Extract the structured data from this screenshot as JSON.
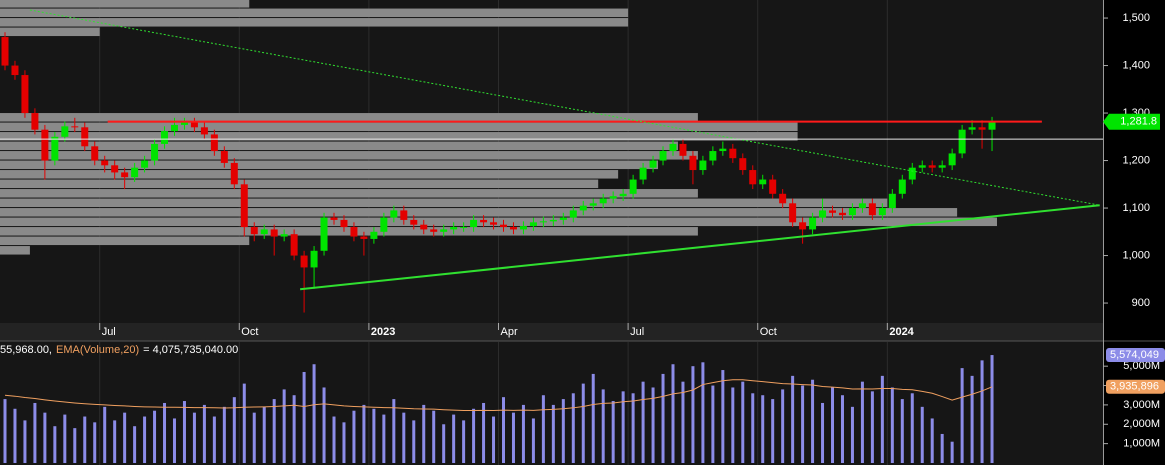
{
  "chart_data": [
    {
      "type": "candlestick",
      "categories": [
        null,
        null,
        null,
        null,
        null,
        null,
        null,
        null,
        null,
        null,
        "Jul",
        null,
        null,
        null,
        null,
        null,
        null,
        null,
        null,
        null,
        null,
        null,
        null,
        null,
        "Oct",
        null,
        null,
        null,
        null,
        null,
        null,
        null,
        null,
        null,
        null,
        null,
        null,
        "2023",
        null,
        null,
        null,
        null,
        null,
        null,
        null,
        null,
        null,
        null,
        null,
        null,
        "Apr",
        null,
        null,
        null,
        null,
        null,
        null,
        null,
        null,
        null,
        null,
        null,
        null,
        "Jul",
        null,
        null,
        null,
        null,
        null,
        null,
        null,
        null,
        null,
        null,
        null,
        null,
        "Oct",
        null,
        null,
        null,
        null,
        null,
        null,
        null,
        null,
        null,
        null,
        null,
        null,
        "2024",
        null,
        null,
        null,
        null,
        null,
        null,
        null,
        null,
        null,
        null
      ],
      "open": [
        1460,
        1400,
        1380,
        1300,
        1265,
        1200,
        1250,
        1272,
        1270,
        1230,
        1200,
        1190,
        1175,
        1165,
        1185,
        1200,
        1235,
        1262,
        1275,
        1280,
        1270,
        1255,
        1220,
        1195,
        1150,
        1060,
        1045,
        1055,
        1040,
        1045,
        1000,
        975,
        1010,
        1080,
        1075,
        1060,
        1040,
        1035,
        1050,
        1080,
        1095,
        1075,
        1065,
        1055,
        1050,
        1055,
        1060,
        1060,
        1075,
        1070,
        1065,
        1060,
        1055,
        1062,
        1070,
        1072,
        1075,
        1080,
        1095,
        1105,
        1110,
        1120,
        1125,
        1130,
        1160,
        1185,
        1200,
        1220,
        1235,
        1210,
        1180,
        1200,
        1220,
        1225,
        1205,
        1180,
        1150,
        1160,
        1130,
        1110,
        1070,
        1055,
        1080,
        1095,
        1090,
        1085,
        1100,
        1110,
        1085,
        1100,
        1130,
        1160,
        1185,
        1190,
        1185,
        1190,
        1215,
        1265,
        1270,
        1265
      ],
      "high": [
        1470,
        1410,
        1390,
        1310,
        1275,
        1260,
        1282,
        1290,
        1280,
        1240,
        1210,
        1200,
        1185,
        1195,
        1210,
        1245,
        1272,
        1290,
        1290,
        1290,
        1280,
        1265,
        1230,
        1205,
        1160,
        1070,
        1065,
        1065,
        1055,
        1055,
        1010,
        1020,
        1090,
        1090,
        1085,
        1070,
        1050,
        1060,
        1090,
        1105,
        1105,
        1085,
        1075,
        1065,
        1065,
        1070,
        1070,
        1085,
        1085,
        1080,
        1075,
        1070,
        1072,
        1080,
        1082,
        1085,
        1090,
        1105,
        1115,
        1120,
        1130,
        1135,
        1140,
        1170,
        1195,
        1210,
        1230,
        1245,
        1245,
        1220,
        1210,
        1230,
        1240,
        1235,
        1215,
        1190,
        1170,
        1170,
        1140,
        1120,
        1080,
        1090,
        1120,
        1105,
        1100,
        1110,
        1120,
        1120,
        1110,
        1140,
        1170,
        1195,
        1200,
        1200,
        1200,
        1225,
        1275,
        1285,
        1285,
        1292
      ],
      "low": [
        1390,
        1370,
        1290,
        1255,
        1160,
        1190,
        1240,
        1260,
        1220,
        1190,
        1175,
        1160,
        1140,
        1155,
        1175,
        1190,
        1225,
        1252,
        1265,
        1260,
        1245,
        1210,
        1185,
        1140,
        1040,
        1030,
        1035,
        1000,
        1030,
        990,
        880,
        930,
        1000,
        1065,
        1050,
        1030,
        1000,
        1025,
        1040,
        1070,
        1065,
        1055,
        1045,
        1040,
        1040,
        1045,
        1050,
        1050,
        1060,
        1055,
        1050,
        1045,
        1045,
        1052,
        1060,
        1062,
        1065,
        1070,
        1085,
        1095,
        1100,
        1110,
        1115,
        1120,
        1150,
        1175,
        1190,
        1210,
        1200,
        1150,
        1170,
        1190,
        1210,
        1195,
        1170,
        1140,
        1140,
        1120,
        1100,
        1060,
        1025,
        1045,
        1070,
        1080,
        1075,
        1075,
        1090,
        1075,
        1075,
        1090,
        1120,
        1150,
        1175,
        1175,
        1175,
        1180,
        1205,
        1255,
        1225,
        1220
      ],
      "close": [
        1400,
        1380,
        1300,
        1265,
        1200,
        1250,
        1272,
        1270,
        1230,
        1200,
        1190,
        1175,
        1165,
        1185,
        1200,
        1235,
        1262,
        1275,
        1280,
        1270,
        1255,
        1220,
        1195,
        1150,
        1060,
        1045,
        1055,
        1040,
        1045,
        1000,
        975,
        1010,
        1080,
        1075,
        1060,
        1040,
        1035,
        1050,
        1080,
        1095,
        1075,
        1065,
        1055,
        1050,
        1055,
        1060,
        1060,
        1075,
        1070,
        1065,
        1060,
        1055,
        1062,
        1070,
        1072,
        1075,
        1080,
        1095,
        1105,
        1110,
        1120,
        1125,
        1130,
        1160,
        1185,
        1200,
        1220,
        1235,
        1210,
        1180,
        1200,
        1220,
        1225,
        1205,
        1180,
        1150,
        1160,
        1130,
        1110,
        1070,
        1055,
        1080,
        1095,
        1090,
        1085,
        1100,
        1110,
        1085,
        1100,
        1130,
        1160,
        1185,
        1190,
        1185,
        1190,
        1215,
        1265,
        1270,
        1265,
        1281.8
      ],
      "up_color": "#00e400",
      "down_color": "#e40000",
      "last_close_label": "1,281.8",
      "ylim": [
        858,
        1538
      ],
      "yticks": [
        900,
        {
          "value": 1000,
          "label": "1,000"
        },
        {
          "value": 1100,
          "label": "1,100"
        },
        {
          "value": 1200,
          "label": "1,200"
        },
        {
          "value": 1300,
          "label": "1,300"
        },
        {
          "value": 1400,
          "label": "1,400"
        },
        {
          "value": 1500,
          "label": "1,500"
        }
      ],
      "grid": true,
      "volume_profile": {
        "color": "#8a8a8a",
        "bins": [
          1000,
          1020,
          1040,
          1060,
          1080,
          1100,
          1120,
          1140,
          1160,
          1180,
          1200,
          1220,
          1240,
          1260,
          1280,
          1300,
          1320,
          1340,
          1360,
          1380,
          1400,
          1420,
          1440,
          1460,
          1480,
          1500,
          1520,
          1540
        ],
        "values": [
          3,
          25,
          70,
          100,
          96,
          89,
          70,
          60,
          62,
          66,
          70,
          68,
          80,
          80,
          70,
          0,
          0,
          0,
          0,
          0,
          0,
          0,
          0,
          10,
          63,
          63,
          25
        ]
      },
      "lines": [
        {
          "color": "#ff1a1a",
          "dashed": false,
          "x": [
            10.3,
            104
          ],
          "y": [
            1282,
            1282
          ]
        },
        {
          "color": "#30e030",
          "dashed": false,
          "x": [
            29.6,
            109.8
          ],
          "y": [
            929,
            1106
          ]
        },
        {
          "color": "#30e030",
          "dashed": true,
          "x": [
            2.5,
            109.8
          ],
          "y": [
            1517,
            1106
          ]
        }
      ],
      "price_line": 1245
    },
    {
      "type": "bar",
      "header_prefix": "55,968.00,",
      "header_suffix": "= 4,075,735,040.00",
      "series": [
        {
          "color": "#8c8ce8",
          "last_label": "5,574,049",
          "values": [
            3300,
            2800,
            2200,
            3100,
            2600,
            1900,
            2500,
            1800,
            2400,
            2100,
            2900,
            2200,
            2600,
            1900,
            2400,
            2700,
            3100,
            2300,
            3200,
            2600,
            3000,
            2400,
            2900,
            3400,
            4100,
            2600,
            2900,
            3300,
            3800,
            3500,
            4700,
            5100,
            3900,
            2400,
            2100,
            2700,
            3000,
            2800,
            2500,
            3300,
            2600,
            2200,
            3000,
            2700,
            2000,
            2500,
            2200,
            2800,
            3100,
            2400,
            3400,
            2600,
            3000,
            2300,
            3500,
            3000,
            3300,
            3600,
            4100,
            4600,
            3800,
            3200,
            3700,
            3600,
            4200,
            3900,
            4600,
            5100,
            4200,
            5000,
            5200,
            4000,
            4800,
            3900,
            4200,
            3600,
            3500,
            3300,
            3800,
            4500,
            4000,
            4300,
            3100,
            3900,
            3500,
            2900,
            4200,
            3700,
            4500,
            3900,
            3300,
            3600,
            2900,
            2300,
            1500,
            1100,
            4900,
            4500,
            5300,
            5574.049
          ]
        },
        {
          "name": "EMA(Volume,20)",
          "type": "line",
          "color": "#f0a060",
          "last_label": "3,935,896",
          "values": [
            3500,
            3450,
            3380,
            3330,
            3260,
            3200,
            3150,
            3100,
            3060,
            3030,
            3000,
            2970,
            2950,
            2920,
            2900,
            2890,
            2880,
            2880,
            2870,
            2860,
            2860,
            2850,
            2840,
            2850,
            2880,
            2890,
            2900,
            2920,
            2950,
            2980,
            2920,
            3010,
            3050,
            3000,
            2950,
            2920,
            2900,
            2880,
            2860,
            2850,
            2830,
            2800,
            2790,
            2780,
            2750,
            2730,
            2710,
            2710,
            2720,
            2710,
            2730,
            2720,
            2730,
            2720,
            2750,
            2770,
            2800,
            2850,
            2920,
            3020,
            3080,
            3100,
            3160,
            3200,
            3280,
            3340,
            3440,
            3570,
            3640,
            3770,
            4050,
            4150,
            4250,
            4300,
            4300,
            4250,
            4200,
            4150,
            4100,
            4080,
            4050,
            4030,
            3950,
            3920,
            3880,
            3820,
            3830,
            3820,
            3850,
            3850,
            3800,
            3780,
            3700,
            3600,
            3430,
            3250,
            3400,
            3550,
            3720,
            3935.896
          ]
        }
      ],
      "ylim": [
        0,
        6300
      ],
      "yticks": [
        {
          "value": 1000,
          "label": "1,000M"
        },
        {
          "value": 2000,
          "label": "2,000M"
        },
        {
          "value": 3000,
          "label": "3,000M"
        },
        {
          "value": 4000,
          "label": "4,000M"
        },
        {
          "value": 5000,
          "label": "5,000M"
        }
      ]
    }
  ]
}
